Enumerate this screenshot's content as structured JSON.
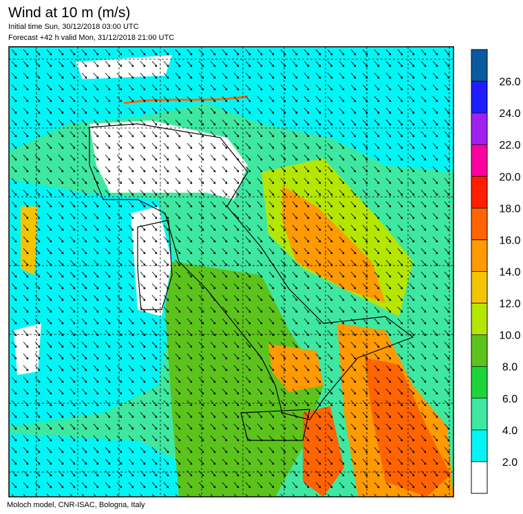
{
  "header": {
    "title": "Wind at 10 m (m/s)",
    "initial_time": "Initial time  Sun, 30/12/2018 03:00 UTC",
    "forecast": "Forecast +42 h valid  Mon, 31/12/2018 21:00 UTC"
  },
  "footer": "Moloch model, CNR-ISAC, Bologna, Italy",
  "colorbar": {
    "range": [
      0,
      28
    ],
    "colors": [
      "#ffffff",
      "#00f5f5",
      "#3ee8a0",
      "#1fd43a",
      "#5cc31c",
      "#b4e600",
      "#f5c400",
      "#ff9a00",
      "#ff6400",
      "#ff1e00",
      "#ff00a0",
      "#a020f0",
      "#1e1eff",
      "#0a5aa0"
    ],
    "ticks": [
      {
        "value": 2,
        "label": "2.0"
      },
      {
        "value": 4,
        "label": "4.0"
      },
      {
        "value": 6,
        "label": "6.0"
      },
      {
        "value": 8,
        "label": "8.0"
      },
      {
        "value": 10,
        "label": "10.0"
      },
      {
        "value": 12,
        "label": "12.0"
      },
      {
        "value": 14,
        "label": "14.0"
      },
      {
        "value": 16,
        "label": "16.0"
      },
      {
        "value": 18,
        "label": "18.0"
      },
      {
        "value": 20,
        "label": "20.0"
      },
      {
        "value": 22,
        "label": "22.0"
      },
      {
        "value": 24,
        "label": "24.0"
      },
      {
        "value": 26,
        "label": "26.0"
      }
    ]
  }
}
